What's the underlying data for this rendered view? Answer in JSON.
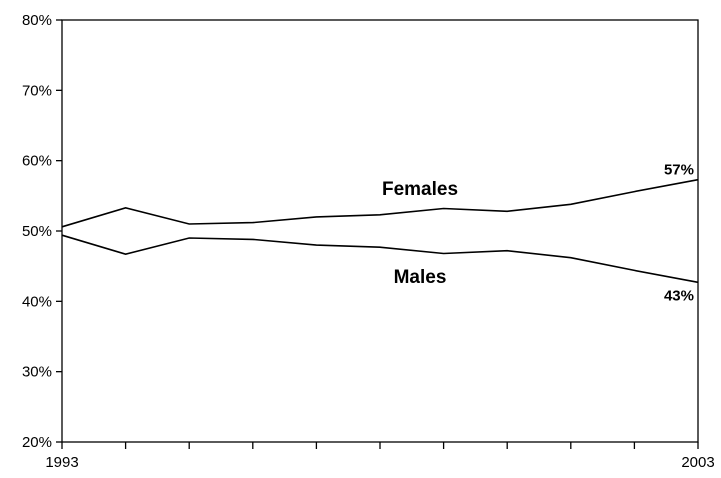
{
  "chart_data": {
    "type": "line",
    "x": [
      1993,
      1994,
      1995,
      1996,
      1997,
      1998,
      1999,
      2000,
      2001,
      2002,
      2003
    ],
    "x_tick_labels": [
      "1993",
      "2003"
    ],
    "y_ticks": [
      20,
      30,
      40,
      50,
      60,
      70,
      80
    ],
    "y_tick_labels": [
      "20%",
      "30%",
      "40%",
      "50%",
      "60%",
      "70%",
      "80%"
    ],
    "ylim": [
      20,
      80
    ],
    "xlim": [
      1993,
      2003
    ],
    "grid": false,
    "legend": "none",
    "series": [
      {
        "name": "Females",
        "values": [
          50.6,
          53.3,
          51.0,
          51.2,
          52.0,
          52.3,
          53.2,
          52.8,
          53.8,
          55.6,
          57.3
        ],
        "end_label": "57%",
        "color": "#000000"
      },
      {
        "name": "Males",
        "values": [
          49.4,
          46.7,
          49.0,
          48.8,
          48.0,
          47.7,
          46.8,
          47.2,
          46.2,
          44.4,
          42.7
        ],
        "end_label": "43%",
        "color": "#000000"
      }
    ]
  }
}
